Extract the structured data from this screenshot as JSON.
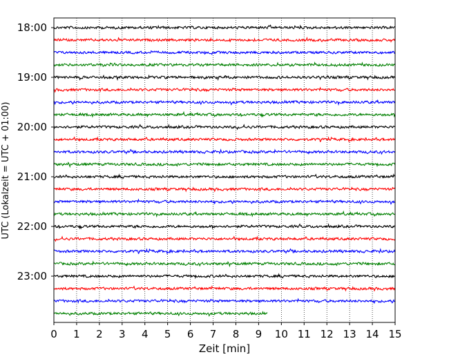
{
  "chart_data": {
    "type": "line",
    "title": "",
    "xlabel": "Zeit  [min]",
    "ylabel": "UTC (Lokalzeit = UTC + 01:00)",
    "xlim": [
      0,
      15
    ],
    "x_ticks": [
      "0",
      "1",
      "2",
      "3",
      "4",
      "5",
      "6",
      "7",
      "8",
      "9",
      "10",
      "11",
      "12",
      "13",
      "14",
      "15"
    ],
    "y_ticks": [
      "18:00",
      "19:00",
      "20:00",
      "21:00",
      "22:00",
      "23:00"
    ],
    "grid": "vertical-dotted",
    "trace_start": "18:00",
    "trace_interval_minutes": 15,
    "trace_count": 24,
    "last_trace_end_minute": 9.4,
    "colors": [
      "#000000",
      "#ff0000",
      "#0000ff",
      "#008000"
    ]
  }
}
